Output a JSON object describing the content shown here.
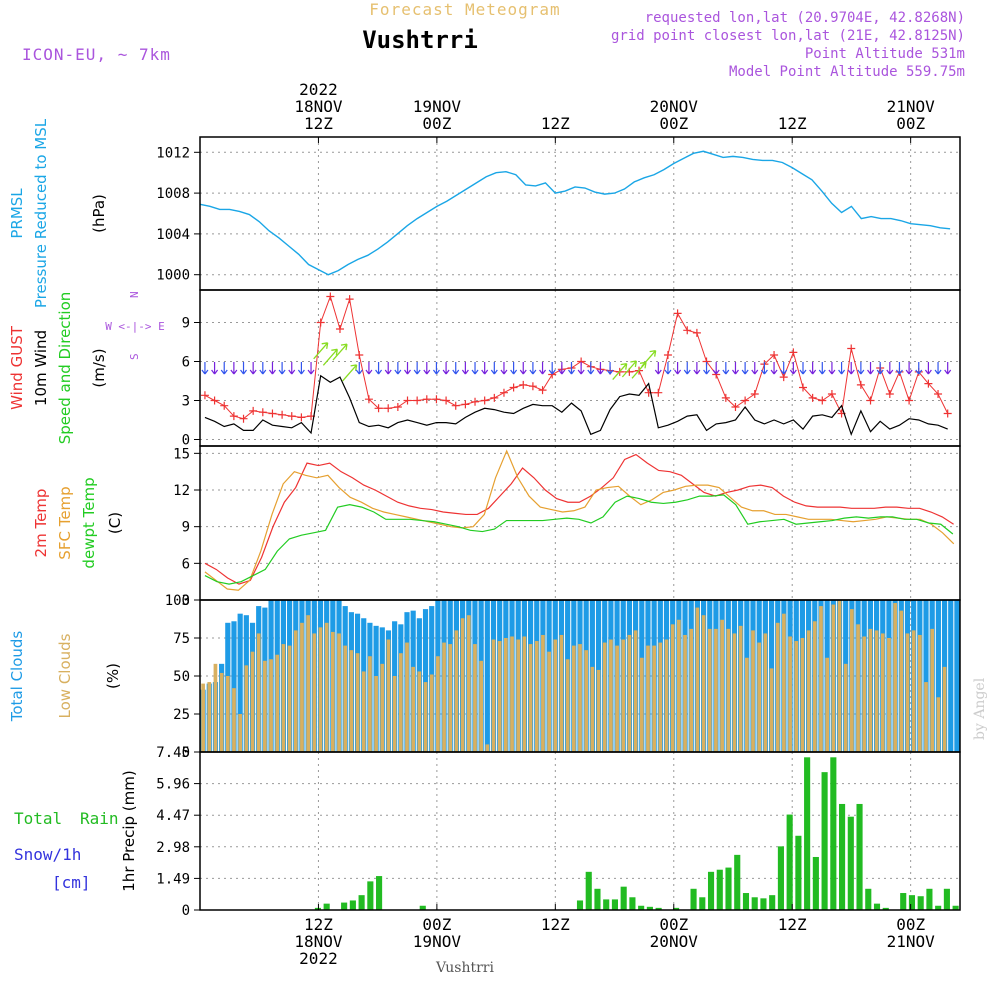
{
  "header": {
    "subtitle": "Forecast Meteogram",
    "location": "Vushtrri",
    "model": "ICON-EU, ~ 7km",
    "requested": "requested lon,lat (20.9704E, 42.8268N)",
    "grid_point": "grid point closest lon,lat (21E, 42.8125N)",
    "point_altitude": "Point Altitude 531m",
    "model_altitude": "Model Point Altitude 559.75m",
    "credit": "by Angel",
    "bottom_label": "Vushtrri"
  },
  "colors": {
    "pressure": "#1aa6e6",
    "gust": "#ee3333",
    "wind": "#000000",
    "temp": "#ee3333",
    "sfc": "#e6a030",
    "dewpt": "#22cc22",
    "total_clouds": "#1e9be6",
    "low_clouds": "#d8b060",
    "rain": "#22bb22",
    "snow": "#3333dd",
    "label_purple": "#aa55dd",
    "grid": "#999999"
  },
  "time_axis": {
    "top_ticks": [
      {
        "t": 12,
        "lines": [
          "2022",
          "18NOV",
          "12Z"
        ]
      },
      {
        "t": 24,
        "lines": [
          "19NOV",
          "00Z"
        ]
      },
      {
        "t": 36,
        "lines": [
          "12Z"
        ]
      },
      {
        "t": 48,
        "lines": [
          "20NOV",
          "00Z"
        ]
      },
      {
        "t": 60,
        "lines": [
          "12Z"
        ]
      },
      {
        "t": 72,
        "lines": [
          "21NOV",
          "00Z"
        ]
      }
    ],
    "bottom_ticks": [
      {
        "t": 12,
        "lines": [
          "12Z",
          "18NOV",
          "2022"
        ]
      },
      {
        "t": 24,
        "lines": [
          "00Z",
          "19NOV"
        ]
      },
      {
        "t": 36,
        "lines": [
          "12Z"
        ]
      },
      {
        "t": 48,
        "lines": [
          "00Z",
          "20NOV"
        ]
      },
      {
        "t": 60,
        "lines": [
          "12Z"
        ]
      },
      {
        "t": 72,
        "lines": [
          "00Z",
          "21NOV"
        ]
      }
    ]
  },
  "chart_data": [
    {
      "type": "line",
      "title": "Pressure",
      "ylabel_lines": [
        "PRMSL",
        "Pressure Reduced to MSL",
        "(hPa)"
      ],
      "ylim": [
        998.5,
        1013.5
      ],
      "yticks": [
        1000,
        1004,
        1008,
        1012
      ],
      "series": [
        {
          "name": "PRMSL",
          "x": [
            0,
            1,
            2,
            3,
            4,
            5,
            6,
            7,
            8,
            9,
            10,
            11,
            12,
            13,
            14,
            15,
            16,
            17,
            18,
            19,
            20,
            21,
            22,
            23,
            24,
            25,
            26,
            27,
            28,
            29,
            30,
            31,
            32,
            33,
            34,
            35,
            36,
            37,
            38,
            39,
            40,
            41,
            42,
            43,
            44,
            45,
            46,
            47,
            48,
            49,
            50,
            51,
            52,
            53,
            54,
            55,
            56,
            57,
            58,
            59,
            60,
            61,
            62,
            63,
            64,
            65,
            66,
            67,
            68,
            69,
            70,
            71,
            72,
            73,
            74,
            75,
            76
          ],
          "values": [
            1006.9,
            1006.7,
            1006.4,
            1006.4,
            1006.2,
            1005.9,
            1005.2,
            1004.3,
            1003.6,
            1002.8,
            1002.0,
            1001.0,
            1000.5,
            1000.0,
            1000.4,
            1001.0,
            1001.5,
            1001.9,
            1002.5,
            1003.2,
            1004.0,
            1004.8,
            1005.5,
            1006.1,
            1006.7,
            1007.2,
            1007.8,
            1008.4,
            1009.0,
            1009.6,
            1010.0,
            1010.1,
            1009.8,
            1008.8,
            1008.7,
            1009.0,
            1008.0,
            1008.2,
            1008.6,
            1008.5,
            1008.1,
            1007.9,
            1008.0,
            1008.4,
            1009.1,
            1009.5,
            1009.8,
            1010.3,
            1010.9,
            1011.4,
            1011.9,
            1012.1,
            1011.8,
            1011.5,
            1011.6,
            1011.5,
            1011.3,
            1011.2,
            1011.2,
            1011.0,
            1010.5,
            1009.9,
            1009.3,
            1008.2,
            1007.0,
            1006.1,
            1006.7,
            1005.5,
            1005.7,
            1005.5,
            1005.5,
            1005.3,
            1005.0,
            1004.9,
            1004.8,
            1004.6,
            1004.5
          ]
        }
      ]
    },
    {
      "type": "line",
      "title": "Wind",
      "ylabel_lines": [
        "Wind GUST",
        "10m Wind",
        "Speed and Direction",
        "(m/s)"
      ],
      "ylim": [
        -0.5,
        11.5
      ],
      "yticks": [
        0,
        3,
        6,
        9
      ],
      "series": [
        {
          "name": "Wind GUST",
          "values": [
            3.4,
            3.0,
            2.6,
            1.8,
            1.6,
            2.2,
            2.1,
            2.0,
            1.9,
            1.8,
            1.7,
            1.8,
            9.0,
            11.0,
            8.5,
            10.8,
            6.5,
            3.1,
            2.4,
            2.4,
            2.5,
            3.0,
            3.0,
            3.1,
            3.1,
            3.0,
            2.6,
            2.7,
            2.9,
            3.0,
            3.2,
            3.6,
            4.0,
            4.2,
            4.1,
            3.8,
            5.0,
            5.4,
            5.5,
            6.0,
            5.6,
            5.4,
            5.3,
            5.2,
            5.2,
            5.3,
            3.6,
            3.6,
            6.5,
            9.7,
            8.4,
            8.2,
            6.0,
            5.0,
            3.2,
            2.5,
            3.0,
            3.5,
            5.8,
            6.5,
            4.8,
            6.7,
            4.0,
            3.2,
            3.0,
            3.5,
            2.0,
            7.0,
            4.2,
            3.0,
            5.5,
            3.5,
            5.2,
            3.0,
            5.2,
            4.3,
            3.5,
            2.0
          ]
        },
        {
          "name": "10m Wind",
          "values": [
            1.7,
            1.4,
            1.0,
            1.2,
            0.7,
            0.7,
            1.5,
            1.1,
            1.0,
            0.9,
            1.3,
            0.5,
            4.9,
            4.4,
            4.8,
            3.2,
            1.3,
            1.0,
            1.1,
            0.9,
            1.3,
            1.5,
            1.3,
            1.1,
            1.3,
            1.3,
            1.2,
            1.7,
            2.1,
            2.4,
            2.3,
            2.1,
            2.0,
            2.4,
            2.7,
            2.6,
            2.6,
            2.1,
            2.8,
            2.2,
            0.4,
            0.7,
            2.3,
            3.3,
            3.5,
            3.4,
            4.3,
            0.9,
            1.1,
            1.4,
            1.8,
            1.9,
            0.7,
            1.2,
            1.3,
            1.5,
            2.5,
            1.5,
            1.2,
            1.5,
            1.2,
            1.5,
            0.8,
            1.8,
            1.9,
            1.7,
            2.6,
            0.4,
            2.2,
            0.6,
            1.4,
            0.8,
            1.1,
            1.6,
            1.5,
            1.2,
            1.1,
            0.8
          ]
        }
      ]
    },
    {
      "type": "line",
      "title": "Temperature",
      "ylabel_lines": [
        "2m Temp",
        "SFC Temp",
        "dewpt Temp",
        "(C)"
      ],
      "ylim": [
        3,
        15.6
      ],
      "yticks": [
        3,
        6,
        9,
        12,
        15
      ],
      "series": [
        {
          "name": "2m Temp",
          "values": [
            6.0,
            5.5,
            4.8,
            4.3,
            4.6,
            6.5,
            9.0,
            11.0,
            12.2,
            14.2,
            14.0,
            14.2,
            13.5,
            13.0,
            12.4,
            12.0,
            11.5,
            11.0,
            10.7,
            10.5,
            10.4,
            10.2,
            10.1,
            10.0,
            10.0,
            10.5,
            11.5,
            12.5,
            13.8,
            13.0,
            12.0,
            11.3,
            11.0,
            11.0,
            11.5,
            12.2,
            13.0,
            14.5,
            14.9,
            14.2,
            13.6,
            13.5,
            13.2,
            12.5,
            11.8,
            11.5,
            11.8,
            12.0,
            12.3,
            12.4,
            12.2,
            11.5,
            11.0,
            10.7,
            10.6,
            10.6,
            10.6,
            10.5,
            10.5,
            10.5,
            10.6,
            10.6,
            10.5,
            10.5,
            10.2,
            9.8,
            9.2
          ]
        },
        {
          "name": "SFC Temp",
          "values": [
            5.3,
            4.6,
            3.9,
            3.8,
            4.6,
            7.0,
            10.0,
            12.5,
            13.5,
            13.2,
            13.0,
            13.2,
            12.2,
            11.4,
            11.0,
            10.5,
            10.2,
            10.0,
            9.8,
            9.6,
            9.4,
            9.2,
            9.0,
            8.9,
            9.0,
            10.0,
            13.0,
            15.2,
            13.0,
            11.5,
            10.6,
            10.4,
            10.2,
            10.3,
            10.6,
            12.0,
            12.2,
            12.3,
            11.5,
            10.8,
            11.2,
            11.8,
            12.0,
            12.3,
            12.4,
            12.4,
            12.2,
            11.4,
            10.6,
            10.3,
            10.3,
            10.0,
            10.0,
            9.8,
            9.6,
            9.6,
            9.6,
            9.5,
            9.4,
            9.5,
            9.6,
            9.8,
            9.7,
            9.6,
            9.6,
            9.2,
            8.5,
            7.6
          ]
        },
        {
          "name": "dewpt Temp",
          "values": [
            5.0,
            4.5,
            4.3,
            4.5,
            5.0,
            5.5,
            7.0,
            8.0,
            8.3,
            8.5,
            8.7,
            10.6,
            10.8,
            10.6,
            10.2,
            9.6,
            9.6,
            9.6,
            9.5,
            9.4,
            9.2,
            9.0,
            8.7,
            8.6,
            8.8,
            9.5,
            9.5,
            9.5,
            9.5,
            9.6,
            9.7,
            9.6,
            9.3,
            9.8,
            11.0,
            11.5,
            11.3,
            11.0,
            10.9,
            11.0,
            11.2,
            11.5,
            11.5,
            11.6,
            10.8,
            9.2,
            9.4,
            9.5,
            9.6,
            9.2,
            9.3,
            9.4,
            9.5,
            9.7,
            9.8,
            9.7,
            9.8,
            9.8,
            9.6,
            9.6,
            9.3,
            9.2,
            8.4
          ]
        }
      ]
    },
    {
      "type": "bar",
      "title": "Clouds",
      "ylabel_lines": [
        "Total Clouds",
        "Low Clouds",
        "(%)"
      ],
      "ylim": [
        0,
        100
      ],
      "yticks": [
        0,
        25,
        50,
        75,
        100
      ],
      "series": [
        {
          "name": "Total Clouds",
          "values": [
            41,
            45,
            46,
            58,
            85,
            86,
            91,
            90,
            85,
            96,
            95,
            100,
            100,
            100,
            100,
            100,
            100,
            100,
            100,
            100,
            100,
            100,
            100,
            96,
            92,
            91,
            88,
            85,
            83,
            82,
            80,
            86,
            84,
            92,
            93,
            88,
            94,
            96,
            100,
            100,
            100,
            100,
            100,
            100,
            100,
            100,
            100,
            100,
            100,
            100,
            100,
            100,
            100,
            100,
            100,
            100,
            100,
            100,
            100,
            100,
            100,
            100,
            100,
            100,
            100,
            100,
            100,
            100,
            100,
            100,
            100,
            100,
            100,
            100,
            100,
            100,
            100,
            100,
            100,
            100,
            100,
            100,
            100,
            100,
            100,
            100,
            100,
            100,
            100,
            100,
            100,
            100,
            100,
            100,
            100,
            100,
            100,
            100,
            100,
            100,
            100,
            100,
            100,
            100,
            100,
            100,
            100,
            100,
            100,
            100,
            100,
            100,
            100,
            100,
            100,
            100,
            100,
            100,
            100,
            100,
            100,
            100,
            100
          ]
        },
        {
          "name": "Low Clouds",
          "values": [
            45,
            46,
            58,
            52,
            50,
            42,
            25,
            57,
            66,
            78,
            60,
            61,
            64,
            71,
            70,
            80,
            85,
            90,
            78,
            82,
            85,
            79,
            78,
            70,
            67,
            65,
            53,
            63,
            50,
            58,
            74,
            50,
            65,
            72,
            56,
            53,
            46,
            51,
            63,
            72,
            71,
            80,
            88,
            90,
            71,
            60,
            5,
            74,
            73,
            75,
            76,
            74,
            76,
            71,
            73,
            77,
            66,
            74,
            77,
            61,
            70,
            71,
            67,
            56,
            54,
            72,
            74,
            70,
            74,
            77,
            80,
            62,
            70,
            70,
            72,
            74,
            84,
            87,
            77,
            81,
            95,
            90,
            81,
            81,
            87,
            81,
            78,
            83,
            62,
            80,
            72,
            78,
            55,
            85,
            91,
            76,
            73,
            75,
            80,
            86,
            96,
            62,
            97,
            100,
            58,
            94,
            84,
            76,
            81,
            80,
            78,
            75,
            98,
            93,
            78,
            80,
            77,
            46,
            81,
            36,
            56
          ]
        }
      ]
    },
    {
      "type": "bar",
      "title": "Precipitation",
      "ylabel_lines": [
        "1hr Precip (mm)"
      ],
      "left_labels": [
        "Total",
        "Rain",
        "Snow/1h",
        "[cm]"
      ],
      "ylim": [
        0,
        7.45
      ],
      "yticks": [
        0,
        1.49,
        2.98,
        4.47,
        5.96,
        7.45
      ],
      "ytick_labels": [
        "0",
        "1.49",
        "2.98",
        "4.47",
        "5.96",
        "7.45"
      ],
      "series": [
        {
          "name": "Total Rain",
          "values": [
            0,
            0,
            0,
            0,
            0,
            0,
            0,
            0,
            0,
            0,
            0,
            0,
            0,
            0.1,
            0.3,
            0,
            0.35,
            0.45,
            0.7,
            1.35,
            1.6,
            0,
            0,
            0,
            0,
            0.2,
            0,
            0,
            0,
            0,
            0,
            0,
            0,
            0,
            0,
            0,
            0,
            0,
            0,
            0,
            0,
            0,
            0,
            0.45,
            1.8,
            1.0,
            0.5,
            0.5,
            1.1,
            0.6,
            0.2,
            0.15,
            0.1,
            0,
            0.1,
            0,
            1.0,
            0.6,
            1.8,
            1.9,
            2.0,
            2.6,
            0.8,
            0.6,
            0.55,
            0.7,
            3.0,
            4.5,
            3.5,
            7.2,
            2.5,
            6.5,
            7.2,
            5.0,
            4.4,
            5.0,
            1.0,
            0.3,
            0.1,
            0,
            0.8,
            0.7,
            0.65,
            1.0,
            0.2,
            1.0,
            0.2
          ]
        }
      ]
    }
  ]
}
